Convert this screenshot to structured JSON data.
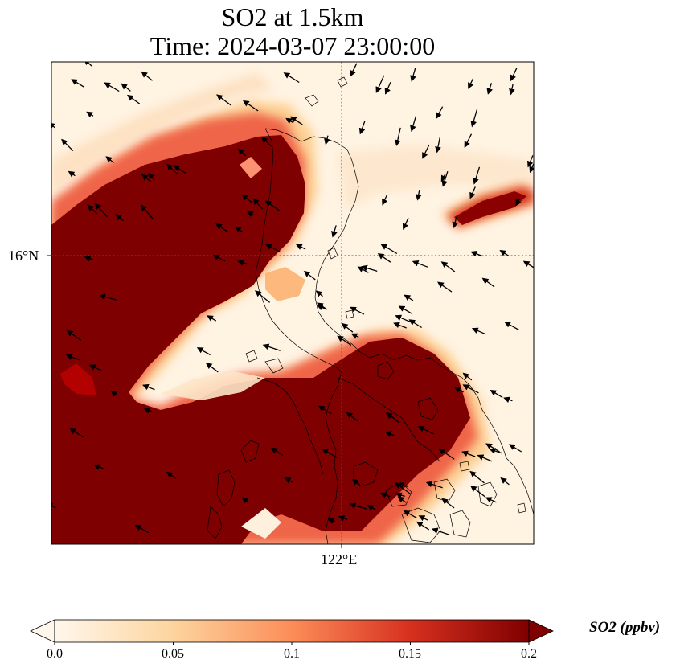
{
  "figure": {
    "title_line1": "SO2 at 1.5km",
    "title_line2": "Time: 2024-03-07 23:00:00"
  },
  "map": {
    "gridline_lat_label": "16°N",
    "gridline_lon_label": "122°E",
    "field": "SO2 concentration at 1.5 km with wind vectors and coastlines"
  },
  "colorbar": {
    "label": "SO2 (ppbv)",
    "ticks": [
      "0.0",
      "0.05",
      "0.1",
      "0.15",
      "0.2"
    ],
    "colormap": "OrRd",
    "colors": [
      "#fff7ec",
      "#fdd49e",
      "#fc8d59",
      "#d7301f",
      "#7f0000"
    ],
    "extend": "both"
  }
}
